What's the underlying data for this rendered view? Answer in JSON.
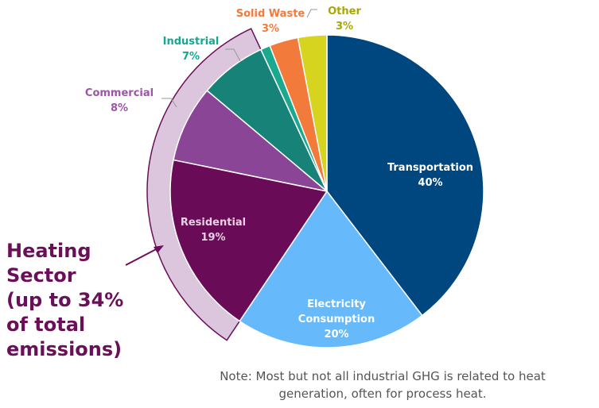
{
  "chart_data": {
    "type": "pie",
    "categories": [
      "Transportation",
      "Electricity Consumption",
      "Residential",
      "Commercial",
      "Industrial",
      null,
      "Solid Waste",
      "Other"
    ],
    "values": [
      40,
      20,
      19,
      8,
      7,
      1,
      3,
      3
    ],
    "value_labels": [
      "40%",
      "20%",
      "19%",
      "8%",
      "7%",
      null,
      "3%",
      "3%"
    ],
    "colors": [
      "#00467f",
      "#66b9fb",
      "#690b57",
      "#8b4596",
      "#168278",
      "#1aa88e",
      "#f27b3c",
      "#d6d41e"
    ],
    "annotation": [
      "Heating",
      "Sector",
      "(up to 34%",
      "of total",
      "emissions)"
    ],
    "note": [
      "Note: Most but not all industrial GHG is related to heat",
      "generation, often for process heat."
    ]
  }
}
